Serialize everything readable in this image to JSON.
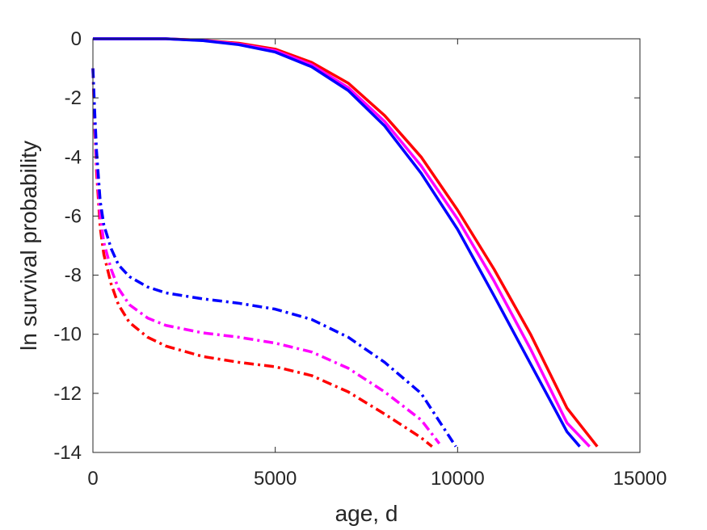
{
  "chart_data": {
    "type": "line",
    "title": "",
    "xlabel": "age, d",
    "ylabel": "ln survival probability",
    "xlim": [
      0,
      15000
    ],
    "ylim": [
      -14,
      0
    ],
    "xticks": [
      0,
      5000,
      10000,
      15000
    ],
    "yticks": [
      0,
      -2,
      -4,
      -6,
      -8,
      -10,
      -12,
      -14
    ],
    "xtick_labels": [
      "0",
      "5000",
      "10000",
      "15000"
    ],
    "ytick_labels": [
      "0",
      "-2",
      "-4",
      "-6",
      "-8",
      "-10",
      "-12",
      "-14"
    ],
    "grid": false,
    "legend": false,
    "series": [
      {
        "style": "solid",
        "color": "#ff0000",
        "x": [
          0,
          1000,
          2000,
          3000,
          4000,
          5000,
          6000,
          7000,
          8000,
          9000,
          10000,
          11000,
          12000,
          13000,
          13830
        ],
        "y": [
          0,
          0,
          0,
          -0.05,
          -0.15,
          -0.35,
          -0.8,
          -1.5,
          -2.6,
          -4.0,
          -5.8,
          -7.8,
          -10.0,
          -12.5,
          -13.8
        ]
      },
      {
        "style": "solid",
        "color": "#ff00ff",
        "x": [
          0,
          1000,
          2000,
          3000,
          4000,
          5000,
          6000,
          7000,
          8000,
          9000,
          10000,
          11000,
          12000,
          13000,
          13620
        ],
        "y": [
          0,
          0,
          0,
          -0.05,
          -0.18,
          -0.4,
          -0.88,
          -1.65,
          -2.8,
          -4.3,
          -6.1,
          -8.2,
          -10.5,
          -13.0,
          -13.8
        ]
      },
      {
        "style": "solid",
        "color": "#0000ff",
        "x": [
          0,
          1000,
          2000,
          3000,
          4000,
          5000,
          6000,
          7000,
          8000,
          9000,
          10000,
          11000,
          12000,
          13000,
          13350
        ],
        "y": [
          0,
          0,
          0,
          -0.06,
          -0.2,
          -0.45,
          -0.95,
          -1.75,
          -2.95,
          -4.55,
          -6.45,
          -8.7,
          -11.0,
          -13.3,
          -13.8
        ]
      },
      {
        "style": "dashdot",
        "color": "#ff0000",
        "x": [
          0,
          50,
          100,
          200,
          300,
          500,
          700,
          1000,
          1500,
          2000,
          3000,
          4000,
          5000,
          6000,
          7000,
          8000,
          9000,
          9300
        ],
        "y": [
          -1,
          -3.0,
          -4.5,
          -6.4,
          -7.3,
          -8.3,
          -9.0,
          -9.6,
          -10.1,
          -10.4,
          -10.75,
          -10.95,
          -11.1,
          -11.4,
          -11.95,
          -12.7,
          -13.5,
          -13.8
        ]
      },
      {
        "style": "dashdot",
        "color": "#ff00ff",
        "x": [
          0,
          50,
          100,
          200,
          300,
          500,
          700,
          1000,
          1500,
          2000,
          3000,
          4000,
          5000,
          6000,
          7000,
          8000,
          9000,
          9500
        ],
        "y": [
          -1,
          -2.8,
          -4.2,
          -6.0,
          -6.9,
          -7.8,
          -8.45,
          -9.0,
          -9.45,
          -9.7,
          -9.95,
          -10.1,
          -10.3,
          -10.6,
          -11.15,
          -11.95,
          -12.9,
          -13.7
        ]
      },
      {
        "style": "dashdot",
        "color": "#0000ff",
        "x": [
          0,
          50,
          100,
          200,
          300,
          500,
          700,
          1000,
          1500,
          2000,
          3000,
          4000,
          5000,
          6000,
          7000,
          8000,
          9000,
          9950
        ],
        "y": [
          -1,
          -2.5,
          -3.8,
          -5.5,
          -6.3,
          -7.1,
          -7.65,
          -8.05,
          -8.4,
          -8.6,
          -8.8,
          -8.95,
          -9.15,
          -9.5,
          -10.1,
          -10.95,
          -12.0,
          -13.8
        ]
      }
    ]
  }
}
